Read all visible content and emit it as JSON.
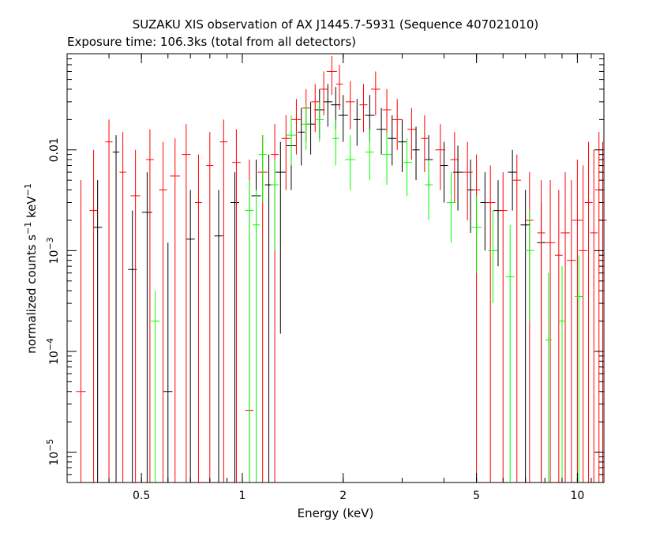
{
  "chart_data": {
    "type": "scatter",
    "title": "SUZAKU XIS observation of AX J1445.7-5931 (Sequence 407021010)",
    "subtitle": "Exposure time: 106.3ks (total from all detectors)",
    "xlabel": "Energy (keV)",
    "ylabel": {
      "base": "normalized counts s",
      "exp1": "−1",
      "mid": " keV",
      "exp2": "−1"
    },
    "xscale": "log",
    "yscale": "log",
    "xlim": [
      0.3,
      12
    ],
    "ylim": [
      5e-06,
      0.09
    ],
    "grid": false,
    "x_ticks": [
      {
        "value": 0.5,
        "label": "0.5"
      },
      {
        "value": 1,
        "label": "1"
      },
      {
        "value": 2,
        "label": "2"
      },
      {
        "value": 5,
        "label": "5"
      },
      {
        "value": 10,
        "label": "10"
      }
    ],
    "y_ticks": [
      {
        "value": 0.01,
        "base": "0.01",
        "exp": ""
      },
      {
        "value": 0.001,
        "base": "10",
        "exp": "−3"
      },
      {
        "value": 0.0001,
        "base": "10",
        "exp": "−4"
      },
      {
        "value": 1e-05,
        "base": "10",
        "exp": "−5"
      }
    ],
    "series": [
      {
        "color": "#000000",
        "points": [
          {
            "x": 0.37,
            "y": 0.0017,
            "lo": 5e-06,
            "hi": 0.005
          },
          {
            "x": 0.42,
            "y": 0.0095,
            "lo": 5e-06,
            "hi": 0.014
          },
          {
            "x": 0.47,
            "y": 0.00065,
            "lo": 5e-06,
            "hi": 0.0025
          },
          {
            "x": 0.52,
            "y": 0.0024,
            "lo": 5e-06,
            "hi": 0.006
          },
          {
            "x": 0.6,
            "y": 4e-05,
            "lo": 5e-06,
            "hi": 0.0012
          },
          {
            "x": 0.7,
            "y": 0.0013,
            "lo": 5e-06,
            "hi": 0.004
          },
          {
            "x": 0.85,
            "y": 0.0014,
            "lo": 5e-06,
            "hi": 0.004
          },
          {
            "x": 0.95,
            "y": 0.003,
            "lo": 5e-06,
            "hi": 0.006
          },
          {
            "x": 1.1,
            "y": 0.0035,
            "lo": 5e-06,
            "hi": 0.008
          },
          {
            "x": 1.2,
            "y": 0.0045,
            "lo": 5e-06,
            "hi": 0.009
          },
          {
            "x": 1.3,
            "y": 0.006,
            "lo": 0.00015,
            "hi": 0.012
          },
          {
            "x": 1.4,
            "y": 0.011,
            "lo": 0.004,
            "hi": 0.018
          },
          {
            "x": 1.5,
            "y": 0.015,
            "lo": 0.007,
            "hi": 0.026
          },
          {
            "x": 1.6,
            "y": 0.018,
            "lo": 0.009,
            "hi": 0.03
          },
          {
            "x": 1.7,
            "y": 0.025,
            "lo": 0.013,
            "hi": 0.04
          },
          {
            "x": 1.8,
            "y": 0.03,
            "lo": 0.017,
            "hi": 0.045
          },
          {
            "x": 1.9,
            "y": 0.028,
            "lo": 0.016,
            "hi": 0.042
          },
          {
            "x": 2.0,
            "y": 0.022,
            "lo": 0.012,
            "hi": 0.035
          },
          {
            "x": 2.2,
            "y": 0.02,
            "lo": 0.011,
            "hi": 0.032
          },
          {
            "x": 2.4,
            "y": 0.022,
            "lo": 0.012,
            "hi": 0.035
          },
          {
            "x": 2.6,
            "y": 0.016,
            "lo": 0.009,
            "hi": 0.026
          },
          {
            "x": 2.8,
            "y": 0.013,
            "lo": 0.007,
            "hi": 0.022
          },
          {
            "x": 3.0,
            "y": 0.012,
            "lo": 0.006,
            "hi": 0.02
          },
          {
            "x": 3.3,
            "y": 0.01,
            "lo": 0.005,
            "hi": 0.017
          },
          {
            "x": 3.6,
            "y": 0.008,
            "lo": 0.004,
            "hi": 0.014
          },
          {
            "x": 4.0,
            "y": 0.007,
            "lo": 0.003,
            "hi": 0.012
          },
          {
            "x": 4.4,
            "y": 0.006,
            "lo": 0.0025,
            "hi": 0.011
          },
          {
            "x": 4.8,
            "y": 0.004,
            "lo": 0.0015,
            "hi": 0.008
          },
          {
            "x": 5.3,
            "y": 0.003,
            "lo": 0.001,
            "hi": 0.006
          },
          {
            "x": 5.8,
            "y": 0.0025,
            "lo": 0.0007,
            "hi": 0.005
          },
          {
            "x": 6.4,
            "y": 0.006,
            "lo": 0.0025,
            "hi": 0.01
          },
          {
            "x": 7.0,
            "y": 0.0018,
            "lo": 5e-06,
            "hi": 0.004
          },
          {
            "x": 7.8,
            "y": 0.0012,
            "lo": 5e-06,
            "hi": 0.003
          }
        ]
      },
      {
        "color": "#ff0000",
        "points": [
          {
            "x": 0.33,
            "y": 4e-05,
            "lo": 5e-06,
            "hi": 0.005
          },
          {
            "x": 0.36,
            "y": 0.0025,
            "lo": 5e-06,
            "hi": 0.01
          },
          {
            "x": 0.4,
            "y": 0.012,
            "lo": 5e-06,
            "hi": 0.02
          },
          {
            "x": 0.44,
            "y": 0.006,
            "lo": 5e-06,
            "hi": 0.015
          },
          {
            "x": 0.48,
            "y": 0.0035,
            "lo": 5e-06,
            "hi": 0.01
          },
          {
            "x": 0.53,
            "y": 0.008,
            "lo": 5e-06,
            "hi": 0.016
          },
          {
            "x": 0.58,
            "y": 0.004,
            "lo": 5e-06,
            "hi": 0.012
          },
          {
            "x": 0.63,
            "y": 0.0055,
            "lo": 5e-06,
            "hi": 0.013
          },
          {
            "x": 0.68,
            "y": 0.009,
            "lo": 5e-06,
            "hi": 0.018
          },
          {
            "x": 0.74,
            "y": 0.003,
            "lo": 5e-06,
            "hi": 0.009
          },
          {
            "x": 0.8,
            "y": 0.007,
            "lo": 5e-06,
            "hi": 0.015
          },
          {
            "x": 0.88,
            "y": 0.012,
            "lo": 5e-06,
            "hi": 0.02
          },
          {
            "x": 0.96,
            "y": 0.0075,
            "lo": 5e-06,
            "hi": 0.016
          },
          {
            "x": 1.05,
            "y": 2.6e-05,
            "lo": 5e-06,
            "hi": 0.008
          },
          {
            "x": 1.15,
            "y": 0.006,
            "lo": 5e-06,
            "hi": 0.014
          },
          {
            "x": 1.25,
            "y": 0.009,
            "lo": 5e-06,
            "hi": 0.018
          },
          {
            "x": 1.35,
            "y": 0.013,
            "lo": 0.004,
            "hi": 0.022
          },
          {
            "x": 1.45,
            "y": 0.02,
            "lo": 0.009,
            "hi": 0.032
          },
          {
            "x": 1.55,
            "y": 0.026,
            "lo": 0.012,
            "hi": 0.04
          },
          {
            "x": 1.65,
            "y": 0.03,
            "lo": 0.015,
            "hi": 0.045
          },
          {
            "x": 1.75,
            "y": 0.04,
            "lo": 0.022,
            "hi": 0.06
          },
          {
            "x": 1.85,
            "y": 0.06,
            "lo": 0.035,
            "hi": 0.085
          },
          {
            "x": 1.95,
            "y": 0.045,
            "lo": 0.025,
            "hi": 0.07
          },
          {
            "x": 2.1,
            "y": 0.03,
            "lo": 0.016,
            "hi": 0.048
          },
          {
            "x": 2.3,
            "y": 0.028,
            "lo": 0.015,
            "hi": 0.045
          },
          {
            "x": 2.5,
            "y": 0.04,
            "lo": 0.022,
            "hi": 0.06
          },
          {
            "x": 2.7,
            "y": 0.025,
            "lo": 0.013,
            "hi": 0.04
          },
          {
            "x": 2.9,
            "y": 0.02,
            "lo": 0.01,
            "hi": 0.032
          },
          {
            "x": 3.2,
            "y": 0.016,
            "lo": 0.008,
            "hi": 0.026
          },
          {
            "x": 3.5,
            "y": 0.013,
            "lo": 0.006,
            "hi": 0.022
          },
          {
            "x": 3.9,
            "y": 0.01,
            "lo": 0.004,
            "hi": 0.018
          },
          {
            "x": 4.3,
            "y": 0.008,
            "lo": 0.003,
            "hi": 0.015
          },
          {
            "x": 4.7,
            "y": 0.006,
            "lo": 0.002,
            "hi": 0.012
          },
          {
            "x": 5.0,
            "y": 0.004,
            "lo": 5e-06,
            "hi": 0.009
          },
          {
            "x": 5.5,
            "y": 0.003,
            "lo": 5e-06,
            "hi": 0.007
          },
          {
            "x": 6.0,
            "y": 0.0025,
            "lo": 5e-06,
            "hi": 0.006
          },
          {
            "x": 6.6,
            "y": 0.005,
            "lo": 5e-06,
            "hi": 0.009
          },
          {
            "x": 7.2,
            "y": 0.002,
            "lo": 5e-06,
            "hi": 0.006
          },
          {
            "x": 7.8,
            "y": 0.0015,
            "lo": 5e-06,
            "hi": 0.005
          },
          {
            "x": 8.3,
            "y": 0.0012,
            "lo": 5e-06,
            "hi": 0.005
          },
          {
            "x": 8.8,
            "y": 0.0009,
            "lo": 5e-06,
            "hi": 0.004
          },
          {
            "x": 9.2,
            "y": 0.0015,
            "lo": 5e-06,
            "hi": 0.006
          },
          {
            "x": 9.6,
            "y": 0.0008,
            "lo": 5e-06,
            "hi": 0.005
          },
          {
            "x": 10.0,
            "y": 0.002,
            "lo": 5e-06,
            "hi": 0.008
          },
          {
            "x": 10.4,
            "y": 0.001,
            "lo": 5e-06,
            "hi": 0.007
          },
          {
            "x": 10.8,
            "y": 0.003,
            "lo": 5e-06,
            "hi": 0.012
          },
          {
            "x": 11.2,
            "y": 0.0015,
            "lo": 5e-06,
            "hi": 0.01
          },
          {
            "x": 11.6,
            "y": 0.004,
            "lo": 5e-06,
            "hi": 0.015
          },
          {
            "x": 11.9,
            "y": 0.002,
            "lo": 5e-06,
            "hi": 0.012
          }
        ]
      },
      {
        "color": "#00ff00",
        "points": [
          {
            "x": 0.55,
            "y": 0.0002,
            "lo": 5e-06,
            "hi": 0.0004
          },
          {
            "x": 1.05,
            "y": 0.0025,
            "lo": 5e-06,
            "hi": 0.005
          },
          {
            "x": 1.1,
            "y": 0.0018,
            "lo": 5e-06,
            "hi": 0.004
          },
          {
            "x": 1.15,
            "y": 0.009,
            "lo": 0.003,
            "hi": 0.014
          },
          {
            "x": 1.25,
            "y": 0.0045,
            "lo": 0.001,
            "hi": 0.008
          },
          {
            "x": 1.4,
            "y": 0.014,
            "lo": 0.007,
            "hi": 0.022
          },
          {
            "x": 1.55,
            "y": 0.018,
            "lo": 0.01,
            "hi": 0.028
          },
          {
            "x": 1.7,
            "y": 0.02,
            "lo": 0.012,
            "hi": 0.03
          },
          {
            "x": 1.9,
            "y": 0.013,
            "lo": 0.007,
            "hi": 0.02
          },
          {
            "x": 2.1,
            "y": 0.008,
            "lo": 0.004,
            "hi": 0.014
          },
          {
            "x": 2.4,
            "y": 0.0095,
            "lo": 0.005,
            "hi": 0.016
          },
          {
            "x": 2.7,
            "y": 0.009,
            "lo": 0.0045,
            "hi": 0.015
          },
          {
            "x": 3.1,
            "y": 0.0075,
            "lo": 0.0035,
            "hi": 0.013
          },
          {
            "x": 3.6,
            "y": 0.0045,
            "lo": 0.002,
            "hi": 0.008
          },
          {
            "x": 4.2,
            "y": 0.003,
            "lo": 0.0012,
            "hi": 0.006
          },
          {
            "x": 5.0,
            "y": 0.0017,
            "lo": 0.0006,
            "hi": 0.0035
          },
          {
            "x": 5.6,
            "y": 0.001,
            "lo": 0.0003,
            "hi": 0.0025
          },
          {
            "x": 6.3,
            "y": 0.00055,
            "lo": 5e-06,
            "hi": 0.0018
          },
          {
            "x": 7.2,
            "y": 0.001,
            "lo": 0.0002,
            "hi": 0.0025
          },
          {
            "x": 8.2,
            "y": 0.00013,
            "lo": 5e-06,
            "hi": 0.0006
          },
          {
            "x": 9.0,
            "y": 0.0002,
            "lo": 5e-06,
            "hi": 0.0007
          },
          {
            "x": 10.1,
            "y": 0.00035,
            "lo": 5e-06,
            "hi": 0.0009
          }
        ]
      }
    ]
  }
}
